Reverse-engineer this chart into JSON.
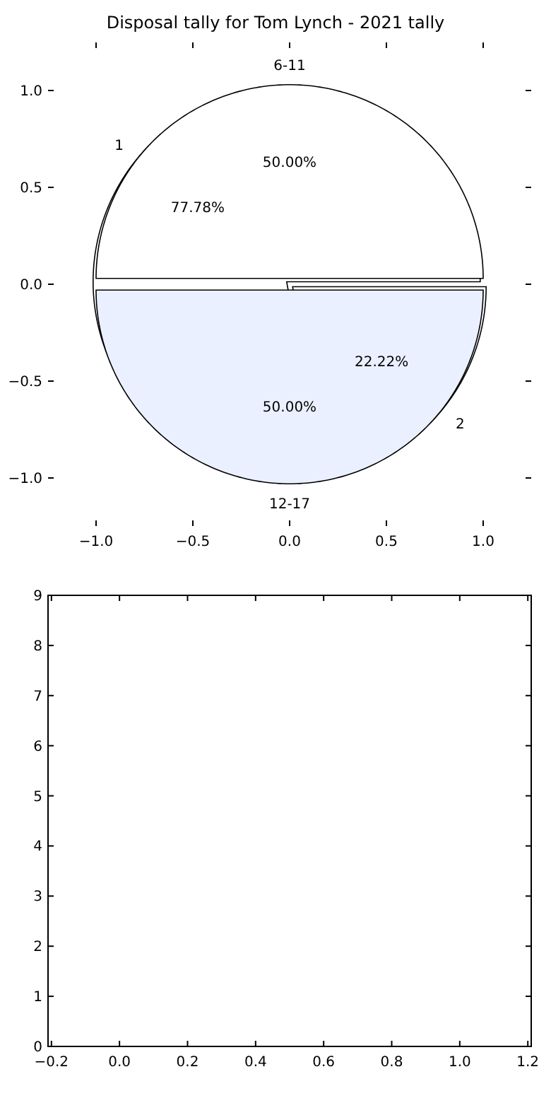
{
  "chart_data": [
    {
      "type": "scatter",
      "title": "Disposal tally for Tom Lynch - 2021 tally",
      "xlim": [
        -1,
        1
      ],
      "ylim": [
        -1,
        1
      ],
      "xticks": [
        {
          "value": -1,
          "label": "−1.0"
        },
        {
          "value": -0.5,
          "label": "−0.5"
        },
        {
          "value": 0,
          "label": "0.0"
        },
        {
          "value": 0.5,
          "label": "0.5"
        },
        {
          "value": 1,
          "label": "1.0"
        }
      ],
      "yticks": [
        {
          "value": -1,
          "label": "−1.0"
        },
        {
          "value": -0.5,
          "label": "−0.5"
        },
        {
          "value": 0,
          "label": "0.0"
        },
        {
          "value": 0.5,
          "label": "0.5"
        },
        {
          "value": 1,
          "label": "1.0"
        }
      ]
    },
    {
      "type": "pie",
      "categories": [
        "6-11",
        "12-17"
      ],
      "values": [
        50,
        50
      ],
      "colors": [
        "#ffffff",
        "#eaf0ff"
      ],
      "value_labels": [
        "50.00%",
        "50.00%"
      ]
    },
    {
      "type": "pie",
      "categories": [
        "1",
        "2"
      ],
      "values": [
        77.78,
        22.22
      ],
      "colors": [
        "#ffffff",
        "#ffffff"
      ],
      "value_labels": [
        "77.78%",
        "22.22%"
      ]
    },
    {
      "type": "scatter",
      "xlim": [
        -0.21,
        1.21
      ],
      "ylim": [
        0,
        9
      ],
      "xticks": [
        {
          "value": -0.2,
          "label": "−0.2"
        },
        {
          "value": 0,
          "label": "0.0"
        },
        {
          "value": 0.2,
          "label": "0.2"
        },
        {
          "value": 0.4,
          "label": "0.4"
        },
        {
          "value": 0.6,
          "label": "0.6"
        },
        {
          "value": 0.8,
          "label": "0.8"
        },
        {
          "value": 1,
          "label": "1.0"
        },
        {
          "value": 1.2,
          "label": "1.2"
        }
      ],
      "yticks": [
        0,
        1,
        2,
        3,
        4,
        5,
        6,
        7,
        8,
        9
      ]
    }
  ]
}
